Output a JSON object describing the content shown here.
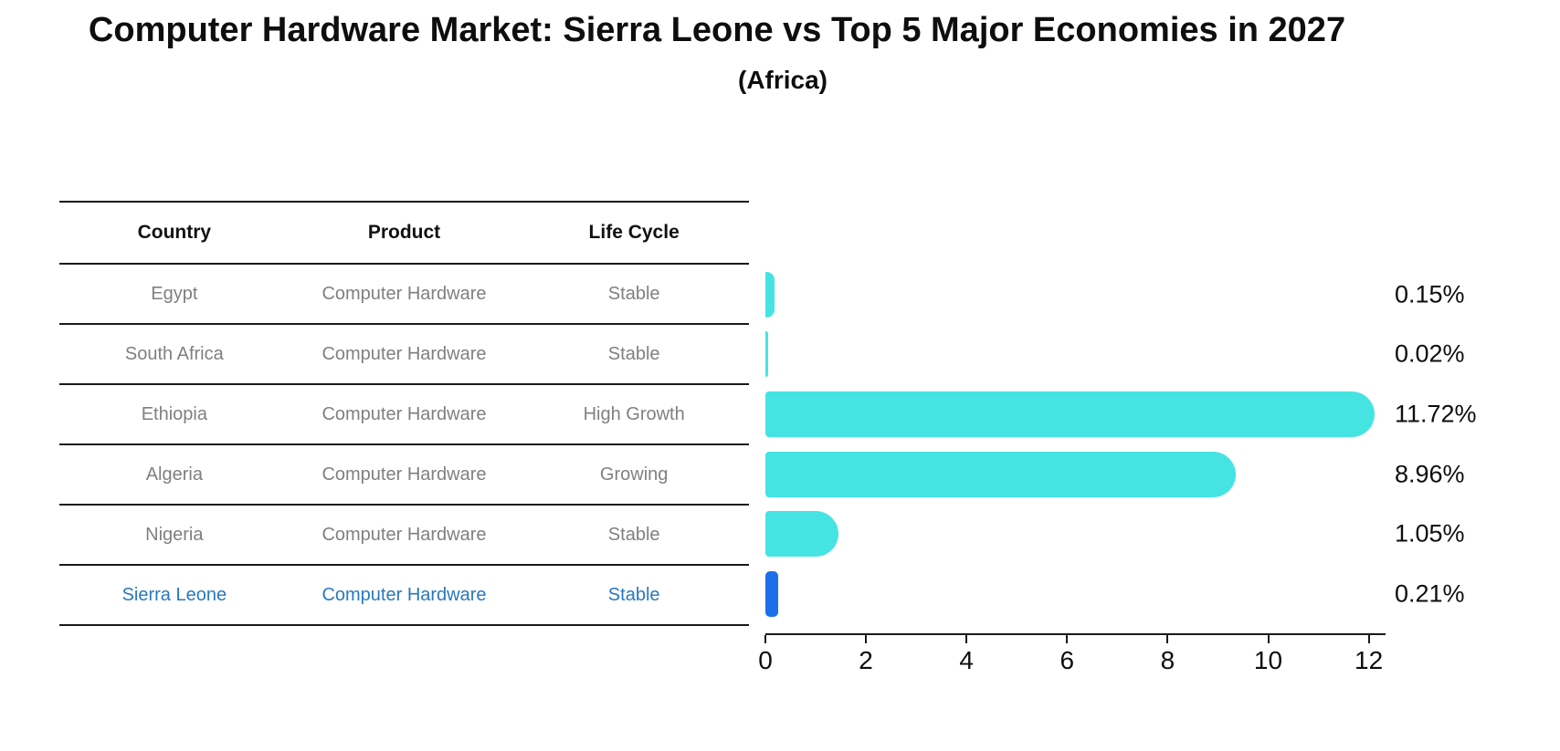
{
  "header": {
    "title": "Computer Hardware Market: Sierra Leone vs Top 5 Major Economies in 2027",
    "subtitle": "(Africa)"
  },
  "colors": {
    "bar": "#45e4e2",
    "highlight_bar": "#1c6fe8",
    "highlight_text": "#2878be",
    "muted_text": "#808080",
    "axis_text": "#0e0e0e",
    "line": "#1a1a1a",
    "background": "#ffffff"
  },
  "table": {
    "headers": [
      "Country",
      "Product",
      "Life Cycle"
    ],
    "rows": [
      {
        "country": "Egypt",
        "product": "Computer Hardware",
        "life_cycle": "Stable",
        "highlight": false
      },
      {
        "country": "South Africa",
        "product": "Computer Hardware",
        "life_cycle": "Stable",
        "highlight": false
      },
      {
        "country": "Ethiopia",
        "product": "Computer Hardware",
        "life_cycle": "High Growth",
        "highlight": false
      },
      {
        "country": "Algeria",
        "product": "Computer Hardware",
        "life_cycle": "Growing",
        "highlight": false
      },
      {
        "country": "Nigeria",
        "product": "Computer Hardware",
        "life_cycle": "Stable",
        "highlight": false
      },
      {
        "country": "Sierra Leone",
        "product": "Computer Hardware",
        "life_cycle": "Stable",
        "highlight": true
      }
    ]
  },
  "chart_data": {
    "type": "bar",
    "orientation": "horizontal",
    "title": "Computer Hardware Market: Sierra Leone vs Top 5 Major Economies in 2027",
    "subtitle": "(Africa)",
    "categories": [
      "Egypt",
      "South Africa",
      "Ethiopia",
      "Algeria",
      "Nigeria",
      "Sierra Leone"
    ],
    "values": [
      0.15,
      0.02,
      11.72,
      8.96,
      1.05,
      0.21
    ],
    "value_labels": [
      "0.15%",
      "0.02%",
      "11.72%",
      "8.96%",
      "1.05%",
      "0.21%"
    ],
    "highlight_index": 5,
    "xticks": [
      "0",
      "2",
      "4",
      "6",
      "8",
      "10",
      "12"
    ],
    "xtick_values": [
      0,
      2,
      4,
      6,
      8,
      10,
      12
    ],
    "xlim": [
      0,
      12.33
    ],
    "ylabel": "",
    "xlabel": "",
    "grid": false,
    "legend": false
  }
}
